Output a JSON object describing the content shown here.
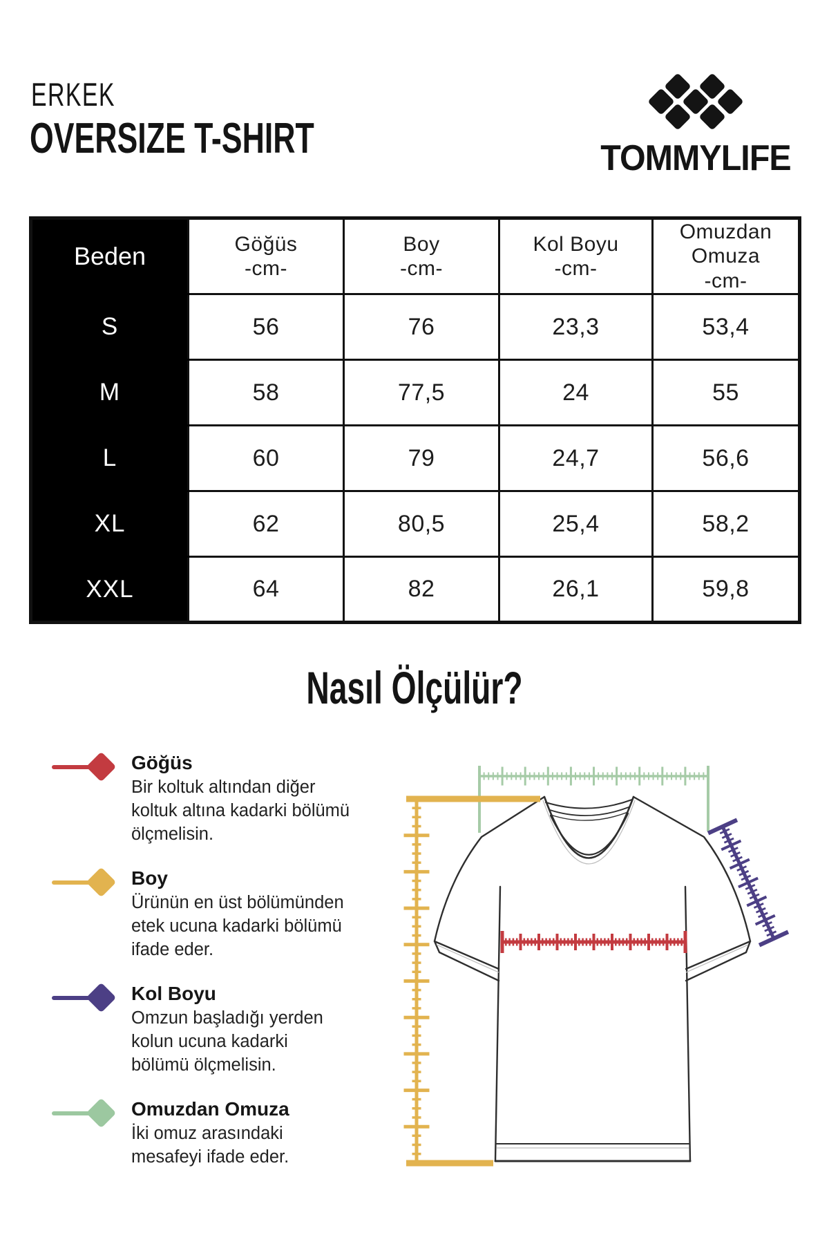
{
  "header": {
    "category": "ERKEK",
    "product_title": "OVERSIZE T-SHIRT",
    "brand": "TOMMYLIFE"
  },
  "size_table": {
    "columns": [
      {
        "label": "Beden",
        "unit": ""
      },
      {
        "label": "Göğüs",
        "unit": "-cm-"
      },
      {
        "label": "Boy",
        "unit": "-cm-"
      },
      {
        "label": "Kol Boyu",
        "unit": "-cm-"
      },
      {
        "label": "Omuzdan Omuza",
        "unit": "-cm-"
      }
    ],
    "rows": [
      {
        "size": "S",
        "values": [
          "56",
          "76",
          "23,3",
          "53,4"
        ]
      },
      {
        "size": "M",
        "values": [
          "58",
          "77,5",
          "24",
          "55"
        ]
      },
      {
        "size": "L",
        "values": [
          "60",
          "79",
          "24,7",
          "56,6"
        ]
      },
      {
        "size": "XL",
        "values": [
          "62",
          "80,5",
          "25,4",
          "58,2"
        ]
      },
      {
        "size": "XXL",
        "values": [
          "64",
          "82",
          "26,1",
          "59,8"
        ]
      }
    ]
  },
  "how_to": {
    "title": "Nasıl Ölçülür?",
    "items": [
      {
        "label": "Göğüs",
        "color": "#C33B40",
        "lines": [
          "Bir koltuk altından diğer",
          "koltuk altına kadarki bölümü",
          "ölçmelisin."
        ]
      },
      {
        "label": "Boy",
        "color": "#E2B34F",
        "lines": [
          "Ürünün en üst bölümünden",
          "etek ucuna kadarki bölümü",
          "ifade eder."
        ]
      },
      {
        "label": "Kol Boyu",
        "color": "#4C3F85",
        "lines": [
          "Omzun başladığı yerden",
          "kolun ucuna kadarki",
          "bölümü ölçmelisin."
        ]
      },
      {
        "label": "Omuzdan Omuza",
        "color": "#9CC8A0",
        "lines": [
          "İki omuz arasındaki",
          "mesafeyi ifade eder."
        ]
      }
    ]
  }
}
